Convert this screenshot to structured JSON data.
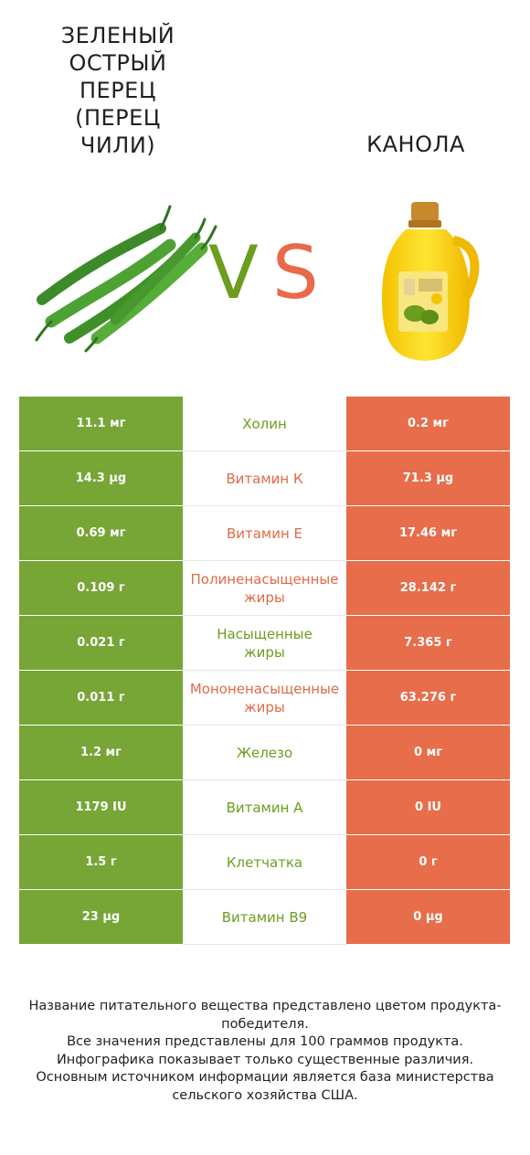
{
  "header": {
    "left_title": "ЗЕЛЕНЫЙ ОСТРЫЙ ПЕРЕЦ (ПЕРЕЦ ЧИЛИ)",
    "right_title": "КАНОЛА",
    "vs_v": "V",
    "vs_s": "S"
  },
  "colors": {
    "green": "#77a536",
    "red": "#e76d4b"
  },
  "rows": [
    {
      "left": "11.1 мг",
      "nutrient": "Холин",
      "right": "0.2 мг",
      "winner": "green"
    },
    {
      "left": "14.3 µg",
      "nutrient": "Витамин К",
      "right": "71.3 µg",
      "winner": "red"
    },
    {
      "left": "0.69 мг",
      "nutrient": "Витамин Е",
      "right": "17.46 мг",
      "winner": "red"
    },
    {
      "left": "0.109 г",
      "nutrient": "Полиненасыщенные жиры",
      "right": "28.142 г",
      "winner": "red"
    },
    {
      "left": "0.021 г",
      "nutrient": "Насыщенные жиры",
      "right": "7.365 г",
      "winner": "green"
    },
    {
      "left": "0.011 г",
      "nutrient": "Мононенасыщенные жиры",
      "right": "63.276 г",
      "winner": "red"
    },
    {
      "left": "1.2 мг",
      "nutrient": "Железо",
      "right": "0 мг",
      "winner": "green"
    },
    {
      "left": "1179 IU",
      "nutrient": "Витамин А",
      "right": "0 IU",
      "winner": "green"
    },
    {
      "left": "1.5 г",
      "nutrient": "Клетчатка",
      "right": "0 г",
      "winner": "green"
    },
    {
      "left": "23 µg",
      "nutrient": "Витамин В9",
      "right": "0 µg",
      "winner": "green"
    }
  ],
  "footnote": {
    "line1": "Название питательного вещества представлено цветом продукта-победителя.",
    "line2": "Все значения представлены для 100 граммов продукта.",
    "line3": "Инфографика показывает только существенные различия.",
    "line4": "Основным источником информации является база министерства сельского хозяйства США."
  }
}
